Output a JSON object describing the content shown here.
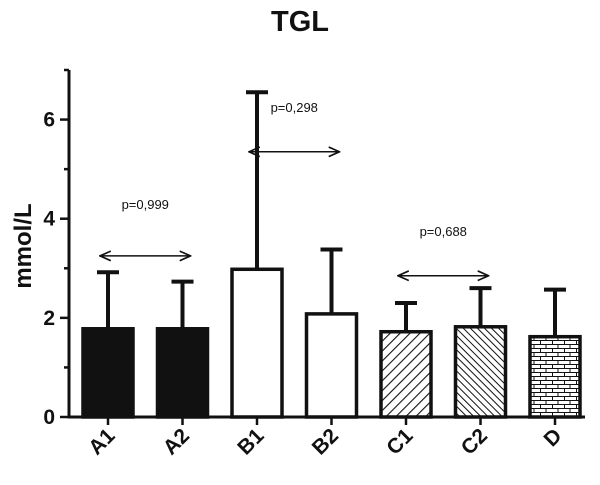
{
  "chart_data": {
    "type": "bar",
    "title": "TGL",
    "ylabel": "mmol/L",
    "xlabel": "",
    "ylim": [
      0,
      7
    ],
    "yticks": [
      0,
      2,
      4,
      6
    ],
    "grid": false,
    "categories": [
      "A1",
      "A2",
      "B1",
      "B2",
      "C1",
      "C2",
      "D"
    ],
    "values": [
      1.78,
      1.78,
      2.98,
      2.08,
      1.72,
      1.82,
      1.62
    ],
    "error_upper": [
      2.92,
      2.73,
      6.55,
      3.38,
      2.3,
      2.6,
      2.57
    ],
    "fills": [
      "solid",
      "solid",
      "open",
      "open",
      "diagonal-hatch",
      "diagonal-hatch-dense",
      "brick"
    ],
    "colors": {
      "bar_stroke": "#111111",
      "solid_fill": "#111111",
      "open_fill": "#ffffff"
    },
    "annotations": [
      {
        "text": "p=0,999",
        "from": "A1",
        "to": "A2",
        "y": 3.25,
        "label_y": 4.2
      },
      {
        "text": "p=0,298",
        "from": "B1",
        "to": "B2",
        "y": 5.35,
        "label_y": 6.15
      },
      {
        "text": "p=0,688",
        "from": "C1",
        "to": "C2",
        "y": 2.85,
        "label_y": 3.65
      }
    ]
  }
}
